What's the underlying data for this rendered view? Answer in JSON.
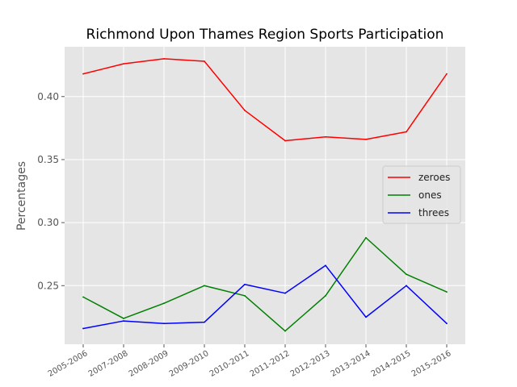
{
  "chart_data": {
    "type": "line",
    "title": "Richmond Upon Thames Region Sports Participation",
    "xlabel": "",
    "ylabel": "Percentages",
    "categories": [
      "2005-2006",
      "2007-2008",
      "2008-2009",
      "2009-2010",
      "2010-2011",
      "2011-2012",
      "2012-2013",
      "2013-2014",
      "2014-2015",
      "2015-2016"
    ],
    "yticks": [
      "0.25",
      "0.30",
      "0.35",
      "0.40"
    ],
    "ylim": [
      0.2035,
      0.4395
    ],
    "grid": true,
    "legend_position": "center-right",
    "series": [
      {
        "name": "zeroes",
        "color": "#ff0000",
        "values": [
          0.418,
          0.426,
          0.43,
          0.428,
          0.389,
          0.365,
          0.368,
          0.366,
          0.372,
          0.418
        ]
      },
      {
        "name": "ones",
        "color": "#008000",
        "values": [
          0.241,
          0.224,
          0.236,
          0.25,
          0.242,
          0.214,
          0.242,
          0.288,
          0.259,
          0.245
        ]
      },
      {
        "name": "threes",
        "color": "#0000ff",
        "values": [
          0.216,
          0.222,
          0.22,
          0.221,
          0.251,
          0.244,
          0.266,
          0.225,
          0.25,
          0.22
        ]
      }
    ]
  }
}
